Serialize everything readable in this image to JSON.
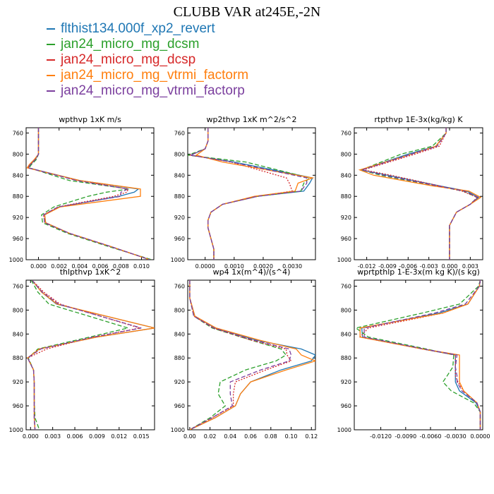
{
  "title": "CLUBB VAR at245E,-2N",
  "colors": {
    "flthist134.000f_xp2_revert": "#1f77b4",
    "jan24_micro_mg_dcsm": "#2ca02c",
    "jan24_micro_mg_dcsp": "#d62728",
    "jan24_micro_mg_vtrmi_factorm": "#ff7f0e",
    "jan24_micro_mg_vtrmi_factorp": "#7b3f9e"
  },
  "legend": [
    {
      "label": "flthist134.000f_xp2_revert",
      "color": "#1f77b4",
      "dash": "solid"
    },
    {
      "label": "jan24_micro_mg_dcsm",
      "color": "#2ca02c",
      "dash": "dashed"
    },
    {
      "label": "jan24_micro_mg_dcsp",
      "color": "#d62728",
      "dash": "dotted"
    },
    {
      "label": "jan24_micro_mg_vtrmi_factorm",
      "color": "#ff7f0e",
      "dash": "solid"
    },
    {
      "label": "jan24_micro_mg_vtrmi_factorp",
      "color": "#7b3f9e",
      "dash": "dashed"
    }
  ],
  "chart_data": [
    {
      "type": "line",
      "title": "wpthvp  1xK m/s",
      "ylim": [
        1000,
        750
      ],
      "xlim": [
        -0.0012,
        0.0112
      ],
      "yticks": [
        760,
        800,
        840,
        880,
        920,
        960,
        1000
      ],
      "xticks": [
        0.0,
        0.002,
        0.004,
        0.006,
        0.008,
        0.01
      ],
      "xtick_labels": [
        "0.000",
        "0.002",
        "0.004",
        "0.006",
        "0.008",
        "0.010"
      ],
      "y": [
        750,
        775,
        800,
        810,
        820,
        826,
        850,
        866,
        872,
        880,
        900,
        915,
        930,
        950,
        975,
        1000
      ],
      "series": [
        {
          "name": "flthist134.000f_xp2_revert",
          "x": [
            0.0,
            0.0,
            0.0,
            -0.0003,
            -0.0008,
            -0.001,
            0.004,
            0.0097,
            0.0093,
            0.0078,
            0.002,
            0.0006,
            0.0007,
            0.003,
            0.007,
            0.0108
          ]
        },
        {
          "name": "jan24_micro_mg_dcsm",
          "x": [
            0.0,
            0.0,
            0.0,
            -0.0002,
            -0.0007,
            -0.0009,
            0.003,
            0.0088,
            0.0066,
            0.0048,
            0.0015,
            0.0003,
            0.0004,
            0.0028,
            0.0068,
            0.011
          ]
        },
        {
          "name": "jan24_micro_mg_dcsp",
          "x": [
            0.0,
            0.0,
            0.0,
            -0.0003,
            -0.0008,
            -0.001,
            0.0038,
            0.0087,
            0.0086,
            0.0073,
            0.0019,
            0.0005,
            0.0006,
            0.003,
            0.007,
            0.0108
          ]
        },
        {
          "name": "jan24_micro_mg_vtrmi_factorm",
          "x": [
            0.0,
            0.0,
            0.0,
            -0.0004,
            -0.0009,
            -0.0011,
            0.004,
            0.0099,
            0.0099,
            0.0099,
            0.0021,
            0.0006,
            0.0007,
            0.003,
            0.007,
            0.0108
          ]
        },
        {
          "name": "jan24_micro_mg_vtrmi_factorp",
          "x": [
            0.0,
            0.0,
            0.0,
            -0.0003,
            -0.0008,
            -0.001,
            0.0037,
            0.0087,
            0.008,
            0.008,
            0.0019,
            0.0005,
            0.0006,
            0.003,
            0.007,
            0.0108
          ]
        }
      ]
    },
    {
      "type": "line",
      "title": "wp2thvp  1xK m^2/s^2",
      "ylim": [
        1000,
        750
      ],
      "xlim": [
        -0.0006,
        0.0038
      ],
      "yticks": [
        760,
        800,
        840,
        880,
        920,
        960,
        1000
      ],
      "xticks": [
        0.0,
        0.001,
        0.002,
        0.003
      ],
      "xtick_labels": [
        "0.0000",
        "0.0010",
        "0.0020",
        "0.0030"
      ],
      "y": [
        750,
        775,
        790,
        802,
        815,
        845,
        855,
        870,
        880,
        895,
        910,
        925,
        940,
        960,
        980,
        1000
      ],
      "series": [
        {
          "name": "flthist134.000f_xp2_revert",
          "x": [
            0.0001,
            0.0001,
            0.0,
            -0.0005,
            0.001,
            0.0037,
            0.0036,
            0.0034,
            0.0018,
            0.0006,
            0.0002,
            0.0001,
            0.0001,
            0.0002,
            0.0003,
            0.0003
          ]
        },
        {
          "name": "jan24_micro_mg_dcsm",
          "x": [
            0.0001,
            0.0001,
            0.0,
            -0.0006,
            0.0014,
            0.0036,
            0.0034,
            0.0033,
            0.0018,
            0.0006,
            0.0002,
            0.0001,
            0.0001,
            0.0002,
            0.0003,
            0.0003
          ]
        },
        {
          "name": "jan24_micro_mg_dcsp",
          "x": [
            0.0001,
            0.0001,
            0.0,
            -0.0005,
            0.0009,
            0.0028,
            0.0029,
            0.003,
            0.0018,
            0.0006,
            0.0002,
            0.0001,
            0.0001,
            0.0002,
            0.0003,
            0.0003
          ]
        },
        {
          "name": "jan24_micro_mg_vtrmi_factorm",
          "x": [
            0.0001,
            0.0001,
            0.0,
            -0.0003,
            0.0006,
            0.0037,
            0.0032,
            0.0031,
            0.0017,
            0.0006,
            0.0002,
            0.0001,
            0.0001,
            0.0002,
            0.0003,
            0.0003
          ]
        },
        {
          "name": "jan24_micro_mg_vtrmi_factorp",
          "x": [
            0.0001,
            0.0001,
            0.0,
            -0.0005,
            0.0009,
            0.0035,
            0.0035,
            0.0033,
            0.0018,
            0.0006,
            0.0002,
            0.0001,
            0.0001,
            0.0002,
            0.0003,
            0.0003
          ]
        }
      ]
    },
    {
      "type": "line",
      "title": "rtpthvp  1E-3x(kg/kg) K",
      "ylim": [
        1000,
        750
      ],
      "xlim": [
        -0.0138,
        0.0048
      ],
      "yticks": [
        760,
        800,
        840,
        880,
        920,
        960,
        1000
      ],
      "xticks": [
        -0.012,
        -0.009,
        -0.006,
        -0.003,
        0.0,
        0.003
      ],
      "xtick_labels": [
        "-0.012",
        "-0.009",
        "-0.006",
        "-0.003",
        "0.000",
        "0.003"
      ],
      "y": [
        750,
        760,
        785,
        800,
        830,
        840,
        860,
        870,
        882,
        895,
        910,
        935,
        950,
        970,
        1000
      ],
      "series": [
        {
          "name": "flthist134.000f_xp2_revert",
          "x": [
            -0.0005,
            -0.0005,
            -0.002,
            -0.006,
            -0.0128,
            -0.009,
            -0.0015,
            0.0025,
            0.0042,
            0.003,
            0.001,
            0.0,
            0.0,
            0.0,
            0.0
          ]
        },
        {
          "name": "jan24_micro_mg_dcsm",
          "x": [
            -0.0005,
            -0.0005,
            -0.0025,
            -0.007,
            -0.0128,
            -0.01,
            -0.002,
            0.002,
            0.004,
            0.003,
            0.001,
            0.0,
            0.0,
            0.0,
            0.0
          ]
        },
        {
          "name": "jan24_micro_mg_dcsp",
          "x": [
            -0.0005,
            -0.0005,
            -0.0015,
            -0.005,
            -0.0125,
            -0.0085,
            -0.0015,
            0.0018,
            0.004,
            0.003,
            0.001,
            0.0,
            0.0,
            0.0,
            0.0
          ]
        },
        {
          "name": "jan24_micro_mg_vtrmi_factorm",
          "x": [
            -0.0005,
            -0.0005,
            -0.002,
            -0.0055,
            -0.013,
            -0.011,
            -0.0025,
            0.0028,
            0.0045,
            0.003,
            0.001,
            0.0,
            0.0,
            0.0,
            0.0
          ]
        },
        {
          "name": "jan24_micro_mg_vtrmi_factorp",
          "x": [
            -0.0005,
            -0.0005,
            -0.0018,
            -0.0055,
            -0.0127,
            -0.0095,
            -0.0018,
            0.0022,
            0.0041,
            0.003,
            0.001,
            0.0,
            0.0,
            0.0,
            0.0
          ]
        }
      ]
    },
    {
      "type": "line",
      "title": "thlpthvp  1xK^2",
      "ylim": [
        1000,
        750
      ],
      "xlim": [
        -0.0006,
        0.0168
      ],
      "yticks": [
        760,
        800,
        840,
        880,
        920,
        960,
        1000
      ],
      "xticks": [
        0.0,
        0.003,
        0.006,
        0.009,
        0.012,
        0.015
      ],
      "xtick_labels": [
        "0.000",
        "0.003",
        "0.006",
        "0.009",
        "0.012",
        "0.015"
      ],
      "y": [
        750,
        770,
        790,
        830,
        845,
        865,
        880,
        900,
        920,
        950,
        980,
        1000
      ],
      "series": [
        {
          "name": "flthist134.000f_xp2_revert",
          "x": [
            0.0002,
            0.0015,
            0.0035,
            0.0168,
            0.009,
            0.0012,
            -0.0004,
            0.0004,
            0.0005,
            0.0005,
            0.0005,
            0.0006
          ]
        },
        {
          "name": "jan24_micro_mg_dcsm",
          "x": [
            0.0001,
            0.001,
            0.0025,
            0.0132,
            0.008,
            0.001,
            -0.0003,
            0.0004,
            0.0005,
            0.0005,
            0.0006,
            0.0012
          ]
        },
        {
          "name": "jan24_micro_mg_dcsp",
          "x": [
            0.0002,
            0.0018,
            0.004,
            0.0148,
            0.0085,
            0.0022,
            -0.0004,
            0.0004,
            0.0005,
            0.0005,
            0.0005,
            0.0006
          ]
        },
        {
          "name": "jan24_micro_mg_vtrmi_factorm",
          "x": [
            0.0002,
            0.0015,
            0.0036,
            0.0168,
            0.009,
            0.0012,
            -0.0004,
            0.0004,
            0.0005,
            0.0005,
            0.0005,
            0.0006
          ]
        },
        {
          "name": "jan24_micro_mg_vtrmi_factorp",
          "x": [
            0.0002,
            0.0016,
            0.0038,
            0.015,
            0.0085,
            0.0014,
            -0.0004,
            0.0004,
            0.0005,
            0.0005,
            0.0005,
            0.0006
          ]
        }
      ]
    },
    {
      "type": "line",
      "title": "wp4  1x(m^4)/(s^4)",
      "ylim": [
        1000,
        750
      ],
      "xlim": [
        -0.002,
        0.124
      ],
      "yticks": [
        760,
        800,
        840,
        880,
        920,
        960,
        1000
      ],
      "xticks": [
        0.0,
        0.02,
        0.04,
        0.06,
        0.08,
        0.1,
        0.12
      ],
      "xtick_labels": [
        "0.00",
        "0.02",
        "0.04",
        "0.06",
        "0.08",
        "0.10",
        "0.12"
      ],
      "y": [
        750,
        780,
        810,
        830,
        850,
        865,
        875,
        885,
        900,
        920,
        940,
        960,
        980,
        1000
      ],
      "series": [
        {
          "name": "flthist134.000f_xp2_revert",
          "x": [
            0.0,
            0.0,
            0.005,
            0.025,
            0.065,
            0.11,
            0.124,
            0.12,
            0.09,
            0.06,
            0.05,
            0.045,
            0.025,
            0.0
          ]
        },
        {
          "name": "jan24_micro_mg_dcsm",
          "x": [
            0.0,
            0.0,
            0.004,
            0.022,
            0.06,
            0.09,
            0.095,
            0.085,
            0.055,
            0.03,
            0.028,
            0.035,
            0.02,
            0.0
          ]
        },
        {
          "name": "jan24_micro_mg_dcsp",
          "x": [
            0.0,
            0.0,
            0.004,
            0.023,
            0.06,
            0.095,
            0.096,
            0.1,
            0.075,
            0.045,
            0.043,
            0.043,
            0.022,
            0.0
          ]
        },
        {
          "name": "jan24_micro_mg_vtrmi_factorm",
          "x": [
            0.0,
            0.0,
            0.005,
            0.026,
            0.068,
            0.105,
            0.11,
            0.124,
            0.095,
            0.06,
            0.05,
            0.045,
            0.025,
            0.0
          ]
        },
        {
          "name": "jan24_micro_mg_vtrmi_factorp",
          "x": [
            0.0,
            0.0,
            0.004,
            0.024,
            0.063,
            0.098,
            0.1,
            0.098,
            0.07,
            0.04,
            0.04,
            0.042,
            0.022,
            0.0
          ]
        }
      ]
    },
    {
      "type": "line",
      "title": "wprtpthlp  1-E-3x(m kg K)/(s kg)",
      "ylim": [
        1000,
        750
      ],
      "xlim": [
        -0.0152,
        0.0003
      ],
      "yticks": [
        760,
        800,
        840,
        880,
        920,
        960,
        1000
      ],
      "xticks": [
        -0.012,
        -0.009,
        -0.006,
        -0.003,
        0.0
      ],
      "xtick_labels": [
        "-0.0120",
        "-0.0090",
        "-0.0060",
        "-0.0030",
        "0.0000"
      ],
      "y": [
        750,
        760,
        790,
        805,
        830,
        845,
        865,
        875,
        895,
        910,
        920,
        935,
        955,
        970,
        1000
      ],
      "series": [
        {
          "name": "flthist134.000f_xp2_revert",
          "x": [
            0.0,
            -0.0001,
            -0.0015,
            -0.005,
            -0.0143,
            -0.0142,
            -0.007,
            -0.003,
            -0.003,
            -0.003,
            -0.003,
            -0.0025,
            -0.0005,
            0.0,
            0.0
          ]
        },
        {
          "name": "jan24_micro_mg_dcsm",
          "x": [
            0.0,
            -0.0002,
            -0.0025,
            -0.007,
            -0.015,
            -0.0135,
            -0.0065,
            -0.0032,
            -0.0033,
            -0.004,
            -0.0045,
            -0.0035,
            -0.0008,
            0.0,
            0.0
          ]
        },
        {
          "name": "jan24_micro_mg_dcsp",
          "x": [
            0.0,
            -0.0001,
            -0.0015,
            -0.0045,
            -0.0135,
            -0.0145,
            -0.007,
            -0.003,
            -0.003,
            -0.003,
            -0.0027,
            -0.002,
            -0.0004,
            0.0,
            0.0
          ]
        },
        {
          "name": "jan24_micro_mg_vtrmi_factorm",
          "x": [
            0.0,
            -0.0001,
            -0.0015,
            -0.0045,
            -0.0145,
            -0.0145,
            -0.007,
            -0.0025,
            -0.0025,
            -0.0025,
            -0.0025,
            -0.002,
            -0.0004,
            0.0,
            0.0
          ]
        },
        {
          "name": "jan24_micro_mg_vtrmi_factorp",
          "x": [
            0.0,
            -0.0001,
            -0.0018,
            -0.0055,
            -0.014,
            -0.014,
            -0.0068,
            -0.0028,
            -0.003,
            -0.0028,
            -0.0028,
            -0.0022,
            -0.0004,
            0.0,
            0.0
          ]
        }
      ]
    }
  ]
}
